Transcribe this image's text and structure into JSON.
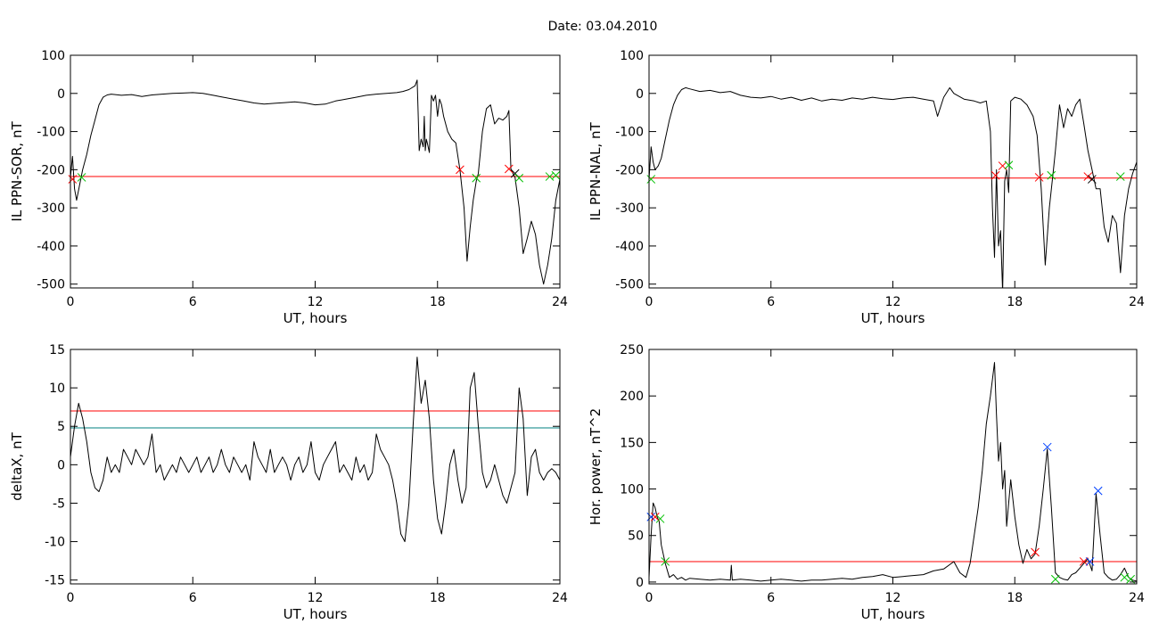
{
  "title": "Date:  03.04.2010",
  "chart_data": [
    {
      "type": "line",
      "xlabel": "UT, hours",
      "ylabel": "IL PPN-SOR, nT",
      "xlim": [
        0,
        24
      ],
      "ylim": [
        -510,
        100
      ],
      "xticks": [
        0,
        6,
        12,
        18,
        24
      ],
      "yticks": [
        -500,
        -400,
        -300,
        -200,
        -100,
        0,
        100
      ],
      "threshold_lines": [
        {
          "y": -218,
          "color": "#ff0000"
        }
      ],
      "series": [
        {
          "color": "#000000",
          "x": [
            0,
            0.1,
            0.2,
            0.3,
            0.45,
            0.6,
            0.8,
            1.0,
            1.2,
            1.4,
            1.6,
            1.8,
            2.0,
            2.5,
            3,
            3.5,
            4,
            4.5,
            5,
            5.5,
            6,
            6.5,
            7,
            7.5,
            8,
            8.5,
            9,
            9.5,
            10,
            10.5,
            11,
            11.5,
            12,
            12.5,
            13,
            13.5,
            14,
            14.5,
            15,
            15.5,
            16,
            16.3,
            16.6,
            16.9,
            17.0,
            17.05,
            17.1,
            17.2,
            17.3,
            17.35,
            17.4,
            17.45,
            17.5,
            17.6,
            17.7,
            17.8,
            17.9,
            18.0,
            18.1,
            18.2,
            18.3,
            18.5,
            18.7,
            18.9,
            19.1,
            19.3,
            19.45,
            19.6,
            19.75,
            19.9,
            20.0,
            20.2,
            20.4,
            20.6,
            20.8,
            21.0,
            21.2,
            21.4,
            21.5,
            21.6,
            21.7,
            21.8,
            21.9,
            22.0,
            22.2,
            22.4,
            22.6,
            22.8,
            23.0,
            23.2,
            23.4,
            23.6,
            23.8,
            24.0
          ],
          "y": [
            -220,
            -165,
            -250,
            -280,
            -240,
            -200,
            -160,
            -110,
            -70,
            -30,
            -10,
            -4,
            -2,
            -5,
            -3,
            -8,
            -4,
            -2,
            0,
            1,
            2,
            0,
            -5,
            -10,
            -15,
            -20,
            -25,
            -28,
            -26,
            -24,
            -22,
            -25,
            -30,
            -28,
            -20,
            -15,
            -10,
            -5,
            -2,
            0,
            2,
            5,
            10,
            20,
            35,
            -50,
            -150,
            -120,
            -140,
            -60,
            -150,
            -120,
            -130,
            -155,
            -5,
            -20,
            -5,
            -60,
            -15,
            -30,
            -60,
            -100,
            -120,
            -130,
            -200,
            -300,
            -440,
            -350,
            -280,
            -230,
            -210,
            -100,
            -40,
            -30,
            -80,
            -65,
            -70,
            -60,
            -45,
            -200,
            -210,
            -220,
            -260,
            -300,
            -420,
            -380,
            -335,
            -370,
            -450,
            -500,
            -450,
            -380,
            -280,
            -225
          ]
        }
      ],
      "markers": [
        {
          "x": 0.1,
          "y": -225,
          "color": "#ff0000"
        },
        {
          "x": 0.55,
          "y": -220,
          "color": "#00c000"
        },
        {
          "x": 19.1,
          "y": -200,
          "color": "#ff0000"
        },
        {
          "x": 19.9,
          "y": -222,
          "color": "#00c000"
        },
        {
          "x": 21.5,
          "y": -198,
          "color": "#ff0000"
        },
        {
          "x": 21.8,
          "y": -210,
          "color": "#000000"
        },
        {
          "x": 22.0,
          "y": -222,
          "color": "#00c000"
        },
        {
          "x": 23.5,
          "y": -218,
          "color": "#00c000"
        },
        {
          "x": 23.8,
          "y": -215,
          "color": "#00c000"
        }
      ]
    },
    {
      "type": "line",
      "xlabel": "UT, hours",
      "ylabel": "IL PPN-NAL, nT",
      "xlim": [
        0,
        24
      ],
      "ylim": [
        -510,
        100
      ],
      "xticks": [
        0,
        6,
        12,
        18,
        24
      ],
      "yticks": [
        -500,
        -400,
        -300,
        -200,
        -100,
        0,
        100
      ],
      "threshold_lines": [
        {
          "y": -222,
          "color": "#ff0000"
        }
      ],
      "series": [
        {
          "color": "#000000",
          "x": [
            0,
            0.1,
            0.2,
            0.3,
            0.45,
            0.6,
            0.8,
            1.0,
            1.2,
            1.4,
            1.6,
            1.8,
            2.0,
            2.5,
            3,
            3.5,
            4,
            4.5,
            5,
            5.5,
            6,
            6.5,
            7,
            7.5,
            8,
            8.5,
            9,
            9.5,
            10,
            10.5,
            11,
            11.5,
            12,
            12.5,
            13,
            13.5,
            14,
            14.2,
            14.5,
            14.8,
            15,
            15.5,
            16,
            16.3,
            16.6,
            16.8,
            16.9,
            17.0,
            17.1,
            17.2,
            17.3,
            17.4,
            17.5,
            17.6,
            17.7,
            17.8,
            18.0,
            18.3,
            18.6,
            18.9,
            19.1,
            19.3,
            19.5,
            19.7,
            19.9,
            20.0,
            20.2,
            20.4,
            20.6,
            20.8,
            21.0,
            21.2,
            21.4,
            21.6,
            21.8,
            22.0,
            22.2,
            22.4,
            22.6,
            22.8,
            23.0,
            23.2,
            23.4,
            23.6,
            23.8,
            24.0
          ],
          "y": [
            -225,
            -140,
            -180,
            -200,
            -190,
            -170,
            -120,
            -70,
            -30,
            -5,
            10,
            15,
            12,
            5,
            8,
            2,
            5,
            -5,
            -10,
            -12,
            -8,
            -15,
            -10,
            -18,
            -12,
            -20,
            -15,
            -18,
            -12,
            -15,
            -10,
            -14,
            -16,
            -12,
            -10,
            -15,
            -20,
            -60,
            -10,
            15,
            0,
            -15,
            -20,
            -25,
            -20,
            -100,
            -300,
            -430,
            -200,
            -400,
            -360,
            -520,
            -230,
            -200,
            -260,
            -20,
            -10,
            -15,
            -30,
            -60,
            -110,
            -250,
            -450,
            -300,
            -200,
            -150,
            -30,
            -90,
            -40,
            -60,
            -30,
            -15,
            -80,
            -150,
            -200,
            -250,
            -250,
            -350,
            -390,
            -320,
            -340,
            -470,
            -320,
            -250,
            -210,
            -180
          ]
        }
      ],
      "markers": [
        {
          "x": 0.1,
          "y": -225,
          "color": "#00c000"
        },
        {
          "x": 17.05,
          "y": -215,
          "color": "#ff0000"
        },
        {
          "x": 17.4,
          "y": -190,
          "color": "#ff0000"
        },
        {
          "x": 17.7,
          "y": -188,
          "color": "#00c000"
        },
        {
          "x": 19.2,
          "y": -220,
          "color": "#ff0000"
        },
        {
          "x": 19.8,
          "y": -215,
          "color": "#00c000"
        },
        {
          "x": 21.6,
          "y": -218,
          "color": "#ff0000"
        },
        {
          "x": 21.8,
          "y": -225,
          "color": "#000000"
        },
        {
          "x": 23.2,
          "y": -218,
          "color": "#00c000"
        }
      ]
    },
    {
      "type": "line",
      "xlabel": "UT, hours",
      "ylabel": "deltaX, nT",
      "xlim": [
        0,
        24
      ],
      "ylim": [
        -15.5,
        15
      ],
      "xticks": [
        0,
        6,
        12,
        18,
        24
      ],
      "yticks": [
        -15,
        -10,
        -5,
        0,
        5,
        10,
        15
      ],
      "threshold_lines": [
        {
          "y": 7,
          "color": "#ff0000"
        },
        {
          "y": 4.8,
          "color": "#008080"
        }
      ],
      "series": [
        {
          "color": "#000000",
          "x": [
            0,
            0.2,
            0.4,
            0.6,
            0.8,
            1.0,
            1.2,
            1.4,
            1.6,
            1.8,
            2.0,
            2.2,
            2.4,
            2.6,
            2.8,
            3.0,
            3.2,
            3.4,
            3.6,
            3.8,
            4.0,
            4.2,
            4.4,
            4.6,
            4.8,
            5.0,
            5.2,
            5.4,
            5.6,
            5.8,
            6.0,
            6.2,
            6.4,
            6.6,
            6.8,
            7.0,
            7.2,
            7.4,
            7.6,
            7.8,
            8.0,
            8.2,
            8.4,
            8.6,
            8.8,
            9.0,
            9.2,
            9.4,
            9.6,
            9.8,
            10.0,
            10.2,
            10.4,
            10.6,
            10.8,
            11.0,
            11.2,
            11.4,
            11.6,
            11.8,
            12.0,
            12.2,
            12.4,
            12.6,
            12.8,
            13.0,
            13.2,
            13.4,
            13.6,
            13.8,
            14.0,
            14.2,
            14.4,
            14.6,
            14.8,
            15.0,
            15.2,
            15.4,
            15.6,
            15.8,
            16.0,
            16.2,
            16.4,
            16.6,
            16.8,
            17.0,
            17.2,
            17.4,
            17.6,
            17.8,
            18.0,
            18.2,
            18.4,
            18.6,
            18.8,
            19.0,
            19.2,
            19.4,
            19.6,
            19.8,
            20.0,
            20.2,
            20.4,
            20.6,
            20.8,
            21.0,
            21.2,
            21.4,
            21.6,
            21.8,
            22.0,
            22.2,
            22.4,
            22.6,
            22.8,
            23.0,
            23.2,
            23.4,
            23.6,
            23.8,
            24.0
          ],
          "y": [
            1,
            5,
            8,
            6,
            3,
            -1,
            -3,
            -3.5,
            -2,
            1,
            -1,
            0,
            -1,
            2,
            1,
            0,
            2,
            1,
            0,
            1,
            4,
            -1,
            0,
            -2,
            -1,
            0,
            -1,
            1,
            0,
            -1,
            0,
            1,
            -1,
            0,
            1,
            -1,
            0,
            2,
            0,
            -1,
            1,
            0,
            -1,
            0,
            -2,
            3,
            1,
            0,
            -1,
            2,
            -1,
            0,
            1,
            0,
            -2,
            0,
            1,
            -1,
            0,
            3,
            -1,
            -2,
            0,
            1,
            2,
            3,
            -1,
            0,
            -1,
            -2,
            1,
            -1,
            0,
            -2,
            -1,
            4,
            2,
            1,
            0,
            -2,
            -5,
            -9,
            -10,
            -5,
            5,
            14,
            8,
            11,
            6,
            -2,
            -7,
            -9,
            -5,
            0,
            2,
            -2,
            -5,
            -3,
            10,
            12,
            5,
            -1,
            -3,
            -2,
            0,
            -2,
            -4,
            -5,
            -3,
            -1,
            10,
            6,
            -4,
            1,
            2,
            -1,
            -2,
            -1,
            -0.5,
            -1,
            -2
          ]
        }
      ],
      "markers": []
    },
    {
      "type": "line",
      "xlabel": "UT, hours",
      "ylabel": "Hor. power, nT^2",
      "xlim": [
        0,
        24
      ],
      "ylim": [
        -2,
        250
      ],
      "xticks": [
        0,
        6,
        12,
        18,
        24
      ],
      "yticks": [
        0,
        50,
        100,
        150,
        200,
        250
      ],
      "threshold_lines": [
        {
          "y": 22,
          "color": "#ff0000"
        }
      ],
      "series": [
        {
          "color": "#000000",
          "x": [
            0,
            0.1,
            0.2,
            0.3,
            0.4,
            0.5,
            0.6,
            0.8,
            1.0,
            1.2,
            1.4,
            1.6,
            1.8,
            2,
            2.5,
            3,
            3.5,
            4,
            4.05,
            4.1,
            4.5,
            5,
            5.5,
            6,
            6.5,
            7,
            7.5,
            8,
            8.5,
            9,
            9.5,
            10,
            10.5,
            11,
            11.5,
            12,
            12.5,
            13,
            13.5,
            14,
            14.5,
            15,
            15.3,
            15.6,
            15.8,
            16.0,
            16.2,
            16.4,
            16.6,
            16.8,
            17.0,
            17.1,
            17.2,
            17.3,
            17.4,
            17.5,
            17.6,
            17.8,
            18.0,
            18.2,
            18.4,
            18.6,
            18.8,
            19.0,
            19.2,
            19.4,
            19.6,
            19.8,
            20.0,
            20.2,
            20.4,
            20.6,
            20.8,
            21.0,
            21.2,
            21.4,
            21.6,
            21.8,
            22.0,
            22.2,
            22.4,
            22.6,
            22.8,
            23.0,
            23.2,
            23.4,
            23.6,
            23.8,
            24.0
          ],
          "y": [
            5,
            50,
            85,
            80,
            70,
            65,
            40,
            20,
            5,
            8,
            3,
            5,
            2,
            4,
            3,
            2,
            3,
            2,
            18,
            2,
            3,
            2,
            1,
            2,
            3,
            2,
            1,
            2,
            2,
            3,
            4,
            3,
            5,
            6,
            8,
            5,
            6,
            7,
            8,
            12,
            14,
            22,
            10,
            5,
            20,
            50,
            80,
            120,
            170,
            200,
            236,
            180,
            130,
            150,
            100,
            120,
            60,
            110,
            70,
            40,
            20,
            35,
            25,
            30,
            60,
            100,
            143,
            80,
            10,
            5,
            3,
            2,
            8,
            10,
            15,
            20,
            25,
            12,
            95,
            50,
            10,
            5,
            2,
            3,
            8,
            15,
            5,
            2,
            1
          ]
        }
      ],
      "markers": [
        {
          "x": 0.1,
          "y": 70,
          "color": "#0040ff"
        },
        {
          "x": 0.3,
          "y": 70,
          "color": "#ff0000"
        },
        {
          "x": 0.55,
          "y": 68,
          "color": "#00c000"
        },
        {
          "x": 0.8,
          "y": 22,
          "color": "#00c000"
        },
        {
          "x": 19.0,
          "y": 32,
          "color": "#ff0000"
        },
        {
          "x": 19.6,
          "y": 145,
          "color": "#0040ff"
        },
        {
          "x": 20.0,
          "y": 3,
          "color": "#00c000"
        },
        {
          "x": 21.4,
          "y": 22,
          "color": "#ff0000"
        },
        {
          "x": 21.7,
          "y": 22,
          "color": "#0040ff"
        },
        {
          "x": 22.1,
          "y": 98,
          "color": "#0040ff"
        },
        {
          "x": 23.4,
          "y": 5,
          "color": "#00c000"
        },
        {
          "x": 23.7,
          "y": 3,
          "color": "#00c000"
        }
      ]
    }
  ]
}
